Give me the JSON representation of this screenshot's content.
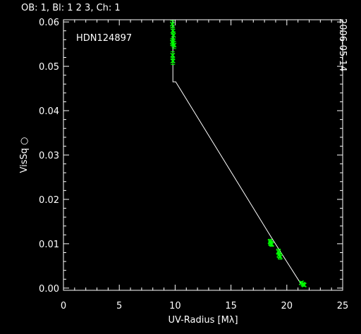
{
  "header": "OB: 1, Bl:  1 2 3, Ch: 1",
  "date": "2006-05-14",
  "chart_data": {
    "type": "scatter",
    "title": "",
    "annotation": "HDN124897",
    "xlabel": "UV-Radius [Mλ]",
    "ylabel": "VisSq  ○",
    "xlim": [
      0,
      25
    ],
    "ylim": [
      -0.0005,
      0.0605
    ],
    "xticks": [
      0,
      5,
      10,
      15,
      20,
      25
    ],
    "yticks": [
      0.0,
      0.01,
      0.02,
      0.03,
      0.04,
      0.05,
      0.06
    ],
    "ytick_labels": [
      "0.00",
      "0.01",
      "0.02",
      "0.03",
      "0.04",
      "0.05",
      "0.06"
    ],
    "grid": false,
    "model_line": {
      "color": "#ffffff",
      "x": [
        9.8,
        9.8,
        10.05,
        18.6,
        21.3
      ],
      "y": [
        0.0605,
        0.0465,
        0.0465,
        0.0115,
        0.0008
      ]
    },
    "points": {
      "color": "#00ff00",
      "x": [
        9.75,
        9.8,
        9.85,
        9.75,
        9.82,
        9.9,
        9.78,
        9.8,
        18.5,
        18.55,
        18.65,
        19.25,
        19.3,
        19.4,
        21.3,
        21.45,
        21.55
      ],
      "y": [
        0.0595,
        0.058,
        0.057,
        0.0555,
        0.0552,
        0.0548,
        0.0525,
        0.0512,
        0.0105,
        0.0101,
        0.0099,
        0.0082,
        0.0075,
        0.0071,
        0.0012,
        0.0009,
        0.0007
      ],
      "yerr": [
        0.0008,
        0.0008,
        0.0008,
        0.0008,
        0.0008,
        0.0008,
        0.0008,
        0.0008,
        0.0005,
        0.0005,
        0.0005,
        0.0006,
        0.0006,
        0.0006,
        0.0003,
        0.0003,
        0.0003
      ]
    }
  }
}
